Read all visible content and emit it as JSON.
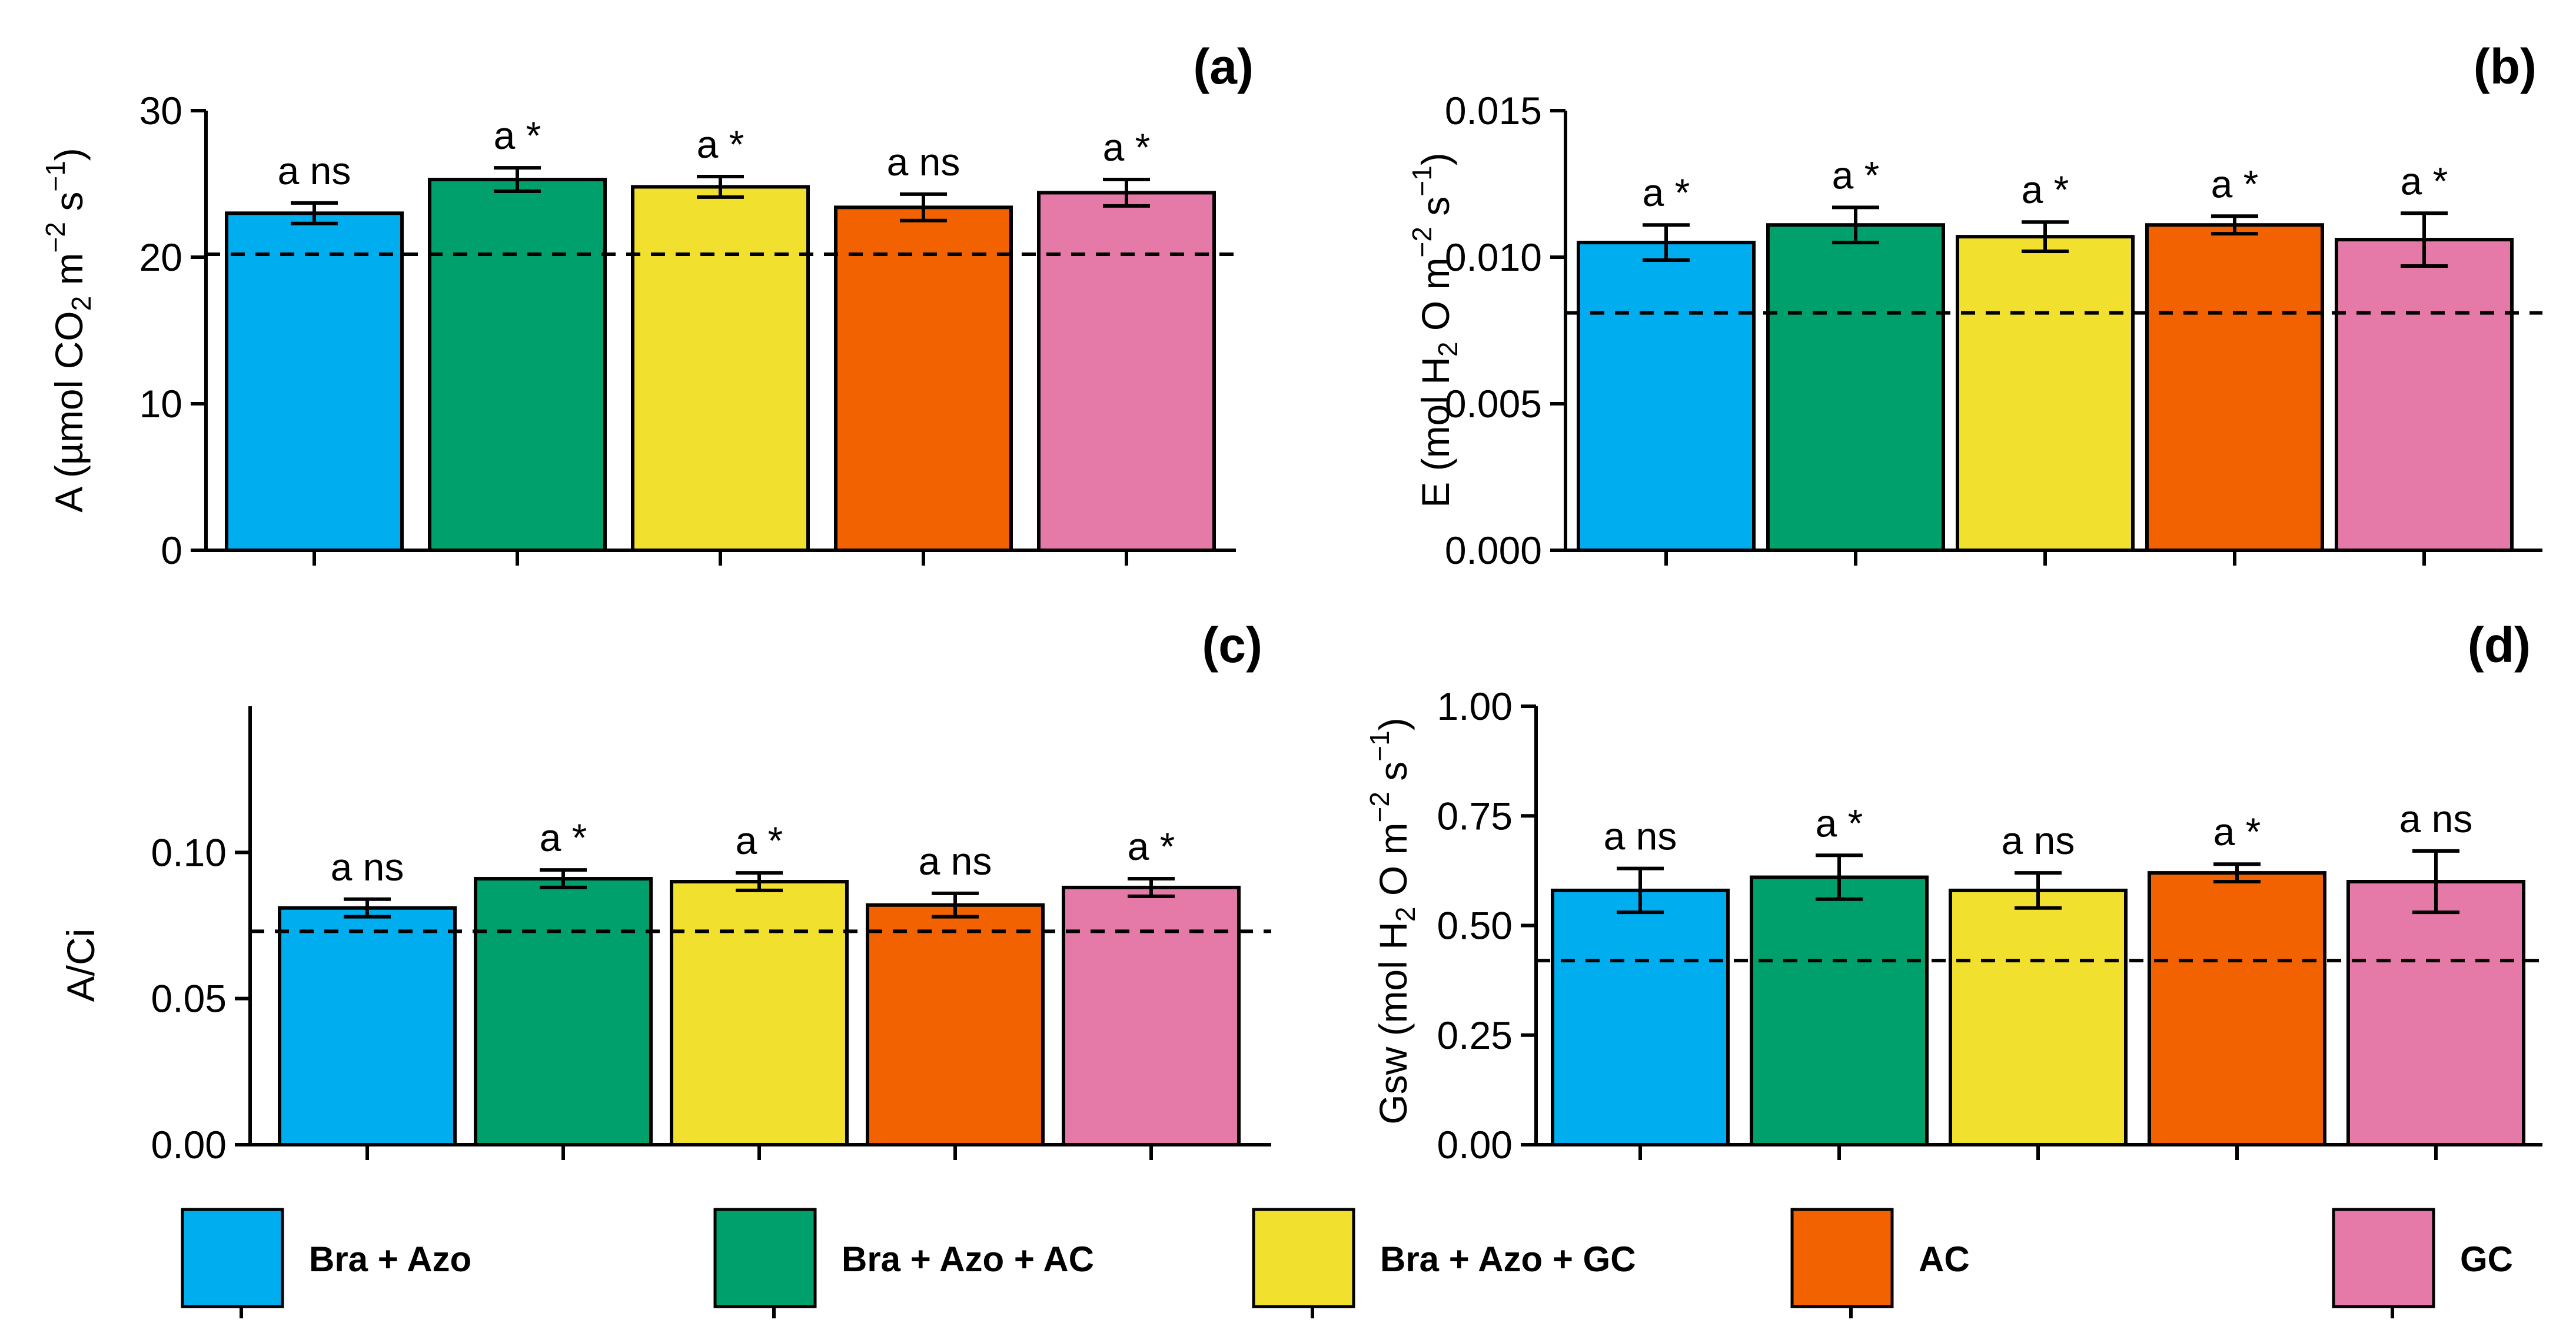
{
  "colors": {
    "Bra + Azo": "#00AEEF",
    "Bra + Azo + AC": "#00A06D",
    "Bra + Azo + GC": "#F2E02E",
    "AC": "#F26200",
    "GC": "#E57AA8"
  },
  "legend": {
    "items": [
      "Bra + Azo",
      "Bra + Azo + AC",
      "Bra + Azo + GC",
      "AC",
      "GC"
    ]
  },
  "chart_data": [
    {
      "panel": "(a)",
      "type": "bar",
      "ylabel_parts": [
        "A (",
        "µmol CO",
        "2",
        " m",
        "−2",
        " s",
        "−1",
        ")"
      ],
      "categories": [
        "Bra + Azo",
        "Bra + Azo + AC",
        "Bra + Azo + GC",
        "AC",
        "GC"
      ],
      "values": [
        23.0,
        25.3,
        24.8,
        23.4,
        24.4
      ],
      "errors": [
        0.7,
        0.8,
        0.7,
        0.9,
        0.9
      ],
      "labels": [
        "a ns",
        "a *",
        "a *",
        "a ns",
        "a *"
      ],
      "reference": 20.2,
      "ylim": [
        0,
        30
      ],
      "ticks": [
        0,
        10,
        20,
        30
      ],
      "tick_labels": [
        "0",
        "10",
        "20",
        "30"
      ]
    },
    {
      "panel": "(b)",
      "type": "bar",
      "ylabel_parts": [
        "E (",
        "mol H",
        "2",
        " O m",
        "−2",
        " s",
        "−1",
        ")"
      ],
      "categories": [
        "Bra + Azo",
        "Bra + Azo + AC",
        "Bra + Azo + GC",
        "AC",
        "GC"
      ],
      "values": [
        0.0105,
        0.0111,
        0.0107,
        0.0111,
        0.0106
      ],
      "errors": [
        0.0006,
        0.0006,
        0.0005,
        0.0003,
        0.0009
      ],
      "labels": [
        "a *",
        "a *",
        "a *",
        "a *",
        "a *"
      ],
      "reference": 0.0081,
      "ylim": [
        0,
        0.015
      ],
      "ticks": [
        0,
        0.005,
        0.01,
        0.015
      ],
      "tick_labels": [
        "0.000",
        "0.005",
        "0.010",
        "0.015"
      ]
    },
    {
      "panel": "(c)",
      "type": "bar",
      "ylabel_parts": [
        "A/Ci"
      ],
      "categories": [
        "Bra + Azo",
        "Bra + Azo + AC",
        "Bra + Azo + GC",
        "AC",
        "GC"
      ],
      "values": [
        0.081,
        0.091,
        0.09,
        0.082,
        0.088
      ],
      "errors": [
        0.003,
        0.003,
        0.003,
        0.004,
        0.003
      ],
      "labels": [
        "a ns",
        "a *",
        "a *",
        "a ns",
        "a *"
      ],
      "reference": 0.073,
      "ylim": [
        0,
        0.15
      ],
      "ticks": [
        0,
        0.05,
        0.1
      ],
      "tick_labels": [
        "0.00",
        "0.05",
        "0.10"
      ]
    },
    {
      "panel": "(d)",
      "type": "bar",
      "ylabel_parts": [
        "Gsw (",
        "mol H",
        "2",
        " O m",
        "−2",
        " s",
        "−1",
        ")"
      ],
      "categories": [
        "Bra + Azo",
        "Bra + Azo + AC",
        "Bra + Azo + GC",
        "AC",
        "GC"
      ],
      "values": [
        0.58,
        0.61,
        0.58,
        0.62,
        0.6
      ],
      "errors": [
        0.05,
        0.05,
        0.04,
        0.02,
        0.07
      ],
      "labels": [
        "a ns",
        "a *",
        "a ns",
        "a *",
        "a ns"
      ],
      "reference": 0.42,
      "ylim": [
        0,
        1.0
      ],
      "ticks": [
        0,
        0.25,
        0.5,
        0.75,
        1.0
      ],
      "tick_labels": [
        "0.00",
        "0.25",
        "0.50",
        "0.75",
        "1.00"
      ]
    }
  ]
}
